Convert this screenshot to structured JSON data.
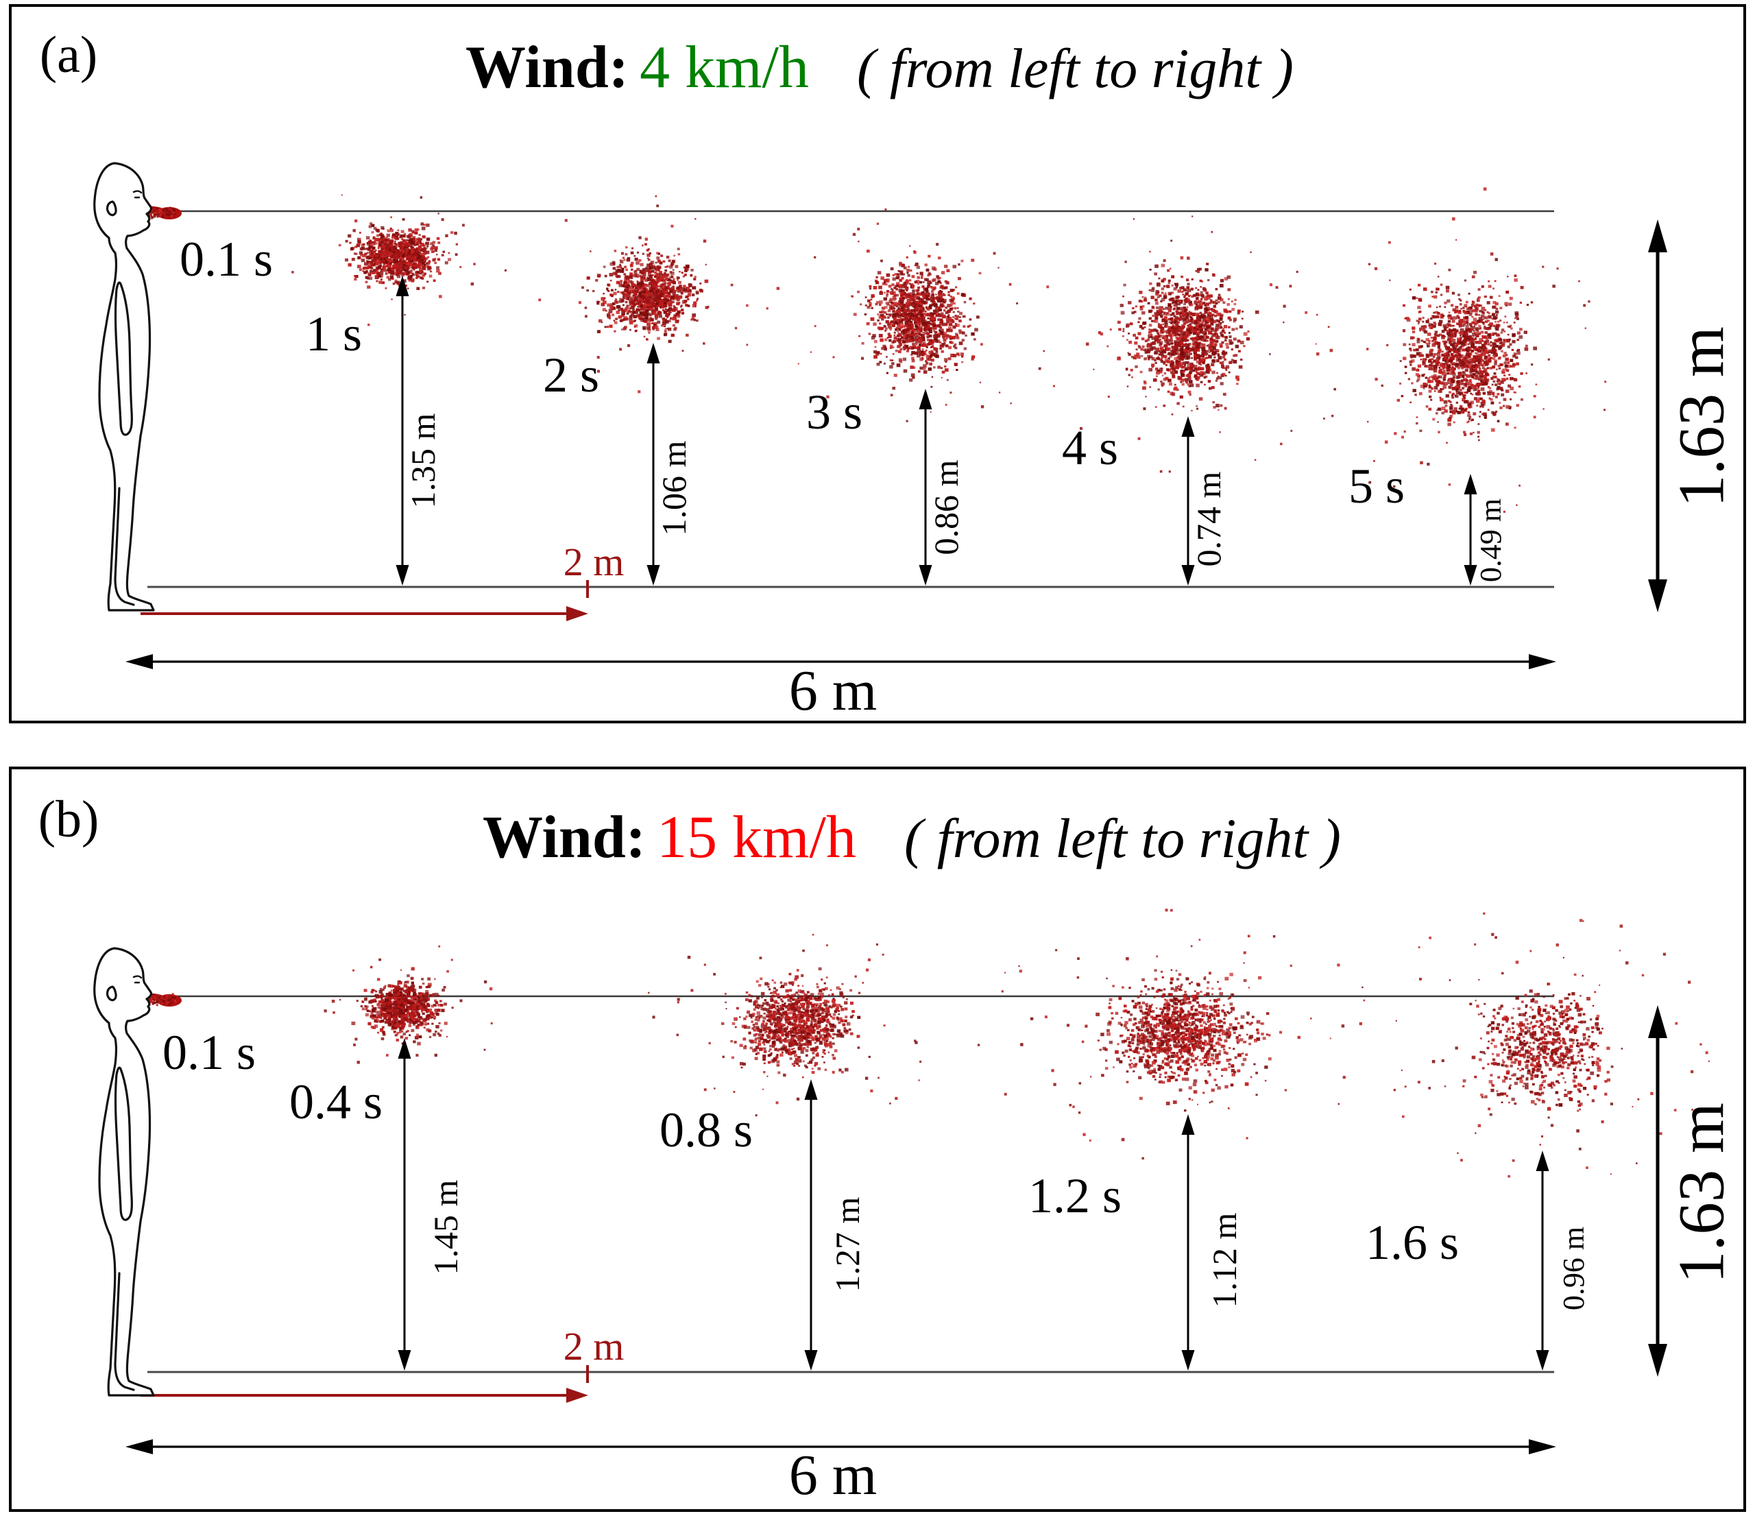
{
  "figure_type": "droplet dispersion under wind, two panels",
  "panels": [
    {
      "label": "(a)",
      "title": {
        "word": "Wind",
        "colon": ":",
        "speed": "4 km/h",
        "speed_color": "#008000",
        "note": "( from left to right )"
      },
      "times": [
        "0.1 s",
        "1 s",
        "2 s",
        "3 s",
        "4 s",
        "5 s"
      ],
      "fall_heights": [
        "1.35 m",
        "1.06 m",
        "0.86 m",
        "0.74 m",
        "0.49 m"
      ],
      "person_height": "1.63 m",
      "wind_distance": "2 m",
      "total_distance": "6 m"
    },
    {
      "label": "(b)",
      "title": {
        "word": "Wind",
        "colon": ":",
        "speed": "15 km/h",
        "speed_color": "#fb0000",
        "note": "( from left to right )"
      },
      "times": [
        "0.1 s",
        "0.4 s",
        "0.8 s",
        "1.2 s",
        "1.6 s"
      ],
      "fall_heights": [
        "1.45 m",
        "1.27 m",
        "1.12 m",
        "0.96 m"
      ],
      "person_height": "1.63 m",
      "wind_distance": "2 m",
      "total_distance": "6 m"
    }
  ],
  "measurements": {
    "type": "scatter",
    "title": "Cough droplet cloud fall height vs time under wind",
    "series": [
      {
        "name": "Wind 4 km/h",
        "x_seconds": [
          1,
          2,
          3,
          4,
          5
        ],
        "cloud_bottom_height_m": [
          1.35,
          1.06,
          0.86,
          0.74,
          0.49
        ]
      },
      {
        "name": "Wind 15 km/h",
        "x_seconds": [
          0.4,
          0.8,
          1.2,
          1.6
        ],
        "cloud_bottom_height_m": [
          1.45,
          1.27,
          1.12,
          0.96
        ]
      }
    ],
    "mouth_height_m": 1.63,
    "marked_distances_m": [
      2,
      6
    ]
  },
  "colors": {
    "droplet_palette": [
      "#7a0b0b",
      "#8f1010",
      "#a31414",
      "#b71919",
      "#c62222"
    ],
    "jet_red": "#b01010",
    "dim_red": "#9a1414",
    "green": "#008000",
    "bright_red": "#fb0000",
    "line_gray": "#4a4a4a",
    "black": "#000000"
  }
}
